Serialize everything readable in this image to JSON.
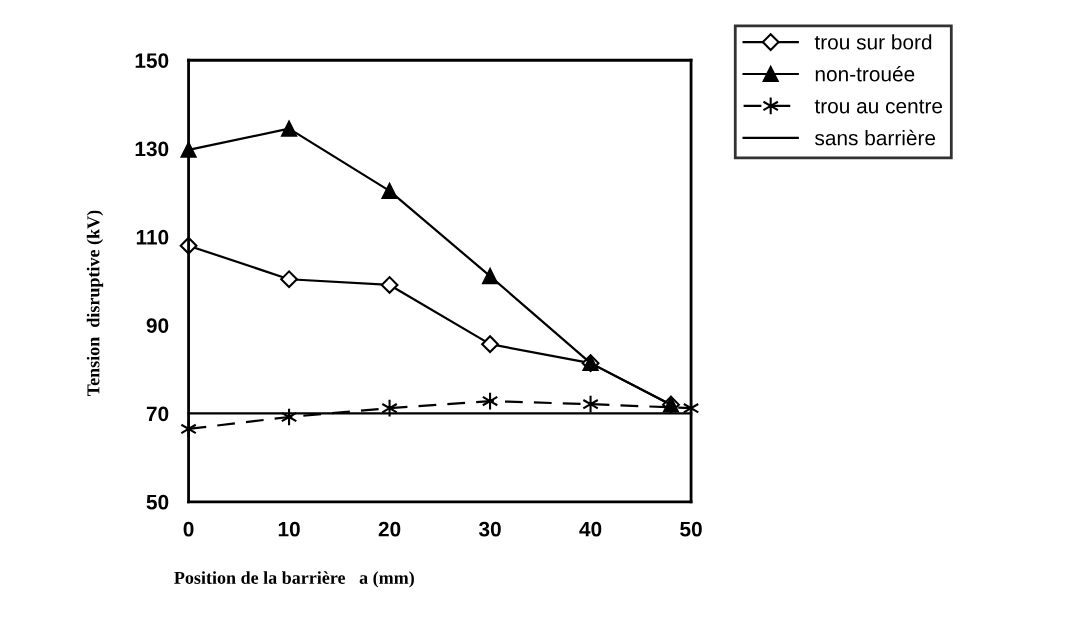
{
  "chart_data": {
    "type": "line",
    "xlabel": "Position de la barrière   a (mm)",
    "ylabel": "Tension  disruptive (kV)",
    "xlim": [
      0,
      50
    ],
    "xticks": [
      0,
      10,
      20,
      30,
      40,
      50
    ],
    "ylim": [
      50,
      150
    ],
    "yticks": [
      50,
      70,
      90,
      110,
      130,
      150
    ],
    "grid": false,
    "legend": "top right",
    "series": [
      {
        "name": "trou sur bord",
        "color": "#000000",
        "marker": "diamond",
        "line_style": "solid",
        "x": [
          0,
          10,
          20,
          30,
          40,
          48
        ],
        "values": [
          108,
          100.4,
          99.1,
          85.7,
          81.4,
          72
        ]
      },
      {
        "name": "non-trouée",
        "color": "#000000",
        "marker": "triangle",
        "line_style": "solid",
        "x": [
          0,
          10,
          20,
          30,
          40,
          48
        ],
        "values": [
          129.7,
          134.5,
          120.4,
          101.1,
          81.4,
          72
        ]
      },
      {
        "name": "trou au centre",
        "color": "#000000",
        "marker": "cross",
        "line_style": "dashed",
        "x": [
          0,
          10,
          20,
          30,
          40,
          50
        ],
        "values": [
          66.5,
          69.2,
          71.2,
          72.8,
          72.1,
          71.2
        ]
      },
      {
        "name": "sans barrière",
        "color": "#000000",
        "marker": "none",
        "line_style": "solid",
        "x": [
          0,
          50
        ],
        "values": [
          70,
          70
        ]
      }
    ]
  }
}
